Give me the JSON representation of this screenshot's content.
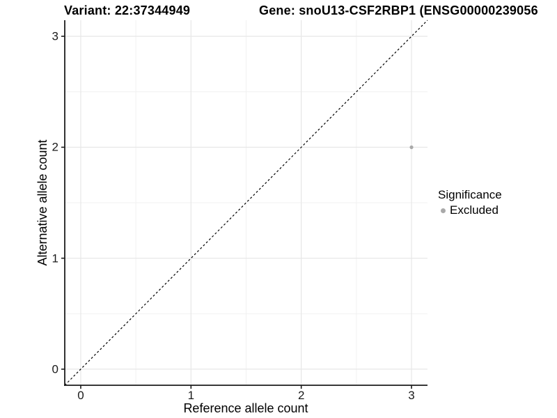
{
  "titles": {
    "variant": "Variant: 22:37344949",
    "gene": "Gene: snoU13-CSF2RBP1 (ENSG00000239056"
  },
  "legend": {
    "title": "Significance",
    "items": [
      {
        "label": "Excluded",
        "color": "#a9a9a9"
      }
    ]
  },
  "colors": {
    "background": "#ffffff",
    "point": "#a9a9a9",
    "grid_major": "#e7e7e7",
    "grid_minor": "#f1f1f1",
    "axis": "#1c1c1c",
    "identity_line": "#000000",
    "tick_label": "#1a1a1a"
  },
  "chart_data": {
    "type": "scatter",
    "title_left": "Variant: 22:37344949",
    "title_right": "Gene: snoU13-CSF2RBP1 (ENSG00000239056",
    "xlabel": "Reference allele count",
    "ylabel": "Alternative allele count",
    "xlim": [
      -0.145,
      3.145
    ],
    "ylim": [
      -0.145,
      3.145
    ],
    "x_ticks": [
      0,
      1,
      2,
      3
    ],
    "y_ticks": [
      0,
      1,
      2,
      3
    ],
    "x_minor_ticks": [
      0.5,
      1.5,
      2.5
    ],
    "y_minor_ticks": [
      0.5,
      1.5,
      2.5
    ],
    "grid": true,
    "legend_position": "right",
    "reference_line": {
      "type": "identity",
      "slope": 1,
      "intercept": 0,
      "style": "dashed"
    },
    "series": [
      {
        "name": "Excluded",
        "points": [
          {
            "x": 3,
            "y": 2
          }
        ]
      }
    ]
  }
}
